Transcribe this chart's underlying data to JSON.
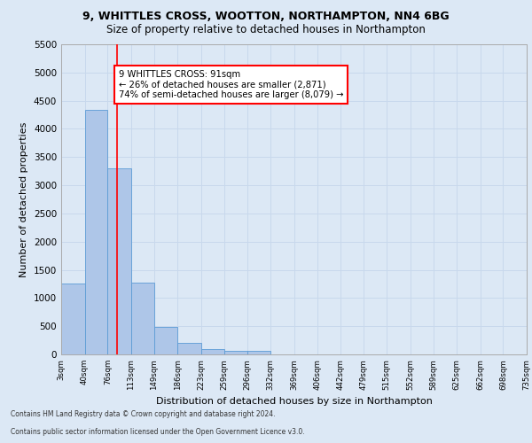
{
  "title1": "9, WHITTLES CROSS, WOOTTON, NORTHAMPTON, NN4 6BG",
  "title2": "Size of property relative to detached houses in Northampton",
  "xlabel": "Distribution of detached houses by size in Northampton",
  "ylabel": "Number of detached properties",
  "footnote1": "Contains HM Land Registry data © Crown copyright and database right 2024.",
  "footnote2": "Contains public sector information licensed under the Open Government Licence v3.0.",
  "annotation_line1": "9 WHITTLES CROSS: 91sqm",
  "annotation_line2": "← 26% of detached houses are smaller (2,871)",
  "annotation_line3": "74% of semi-detached houses are larger (8,079) →",
  "bar_color": "#aec6e8",
  "bar_edge_color": "#5b9bd5",
  "grid_color": "#c8d8ec",
  "property_line_color": "red",
  "property_line_x": 91,
  "bins": [
    3,
    40,
    76,
    113,
    149,
    186,
    223,
    259,
    296,
    332,
    369,
    406,
    442,
    479,
    515,
    552,
    589,
    625,
    662,
    698,
    735
  ],
  "bar_values": [
    1250,
    4330,
    3300,
    1280,
    480,
    210,
    90,
    70,
    60,
    0,
    0,
    0,
    0,
    0,
    0,
    0,
    0,
    0,
    0,
    0
  ],
  "ylim": [
    0,
    5500
  ],
  "yticks": [
    0,
    500,
    1000,
    1500,
    2000,
    2500,
    3000,
    3500,
    4000,
    4500,
    5000,
    5500
  ],
  "background_color": "#dce8f5",
  "axes_background": "#dce8f5",
  "fig_background": "#dce8f5"
}
